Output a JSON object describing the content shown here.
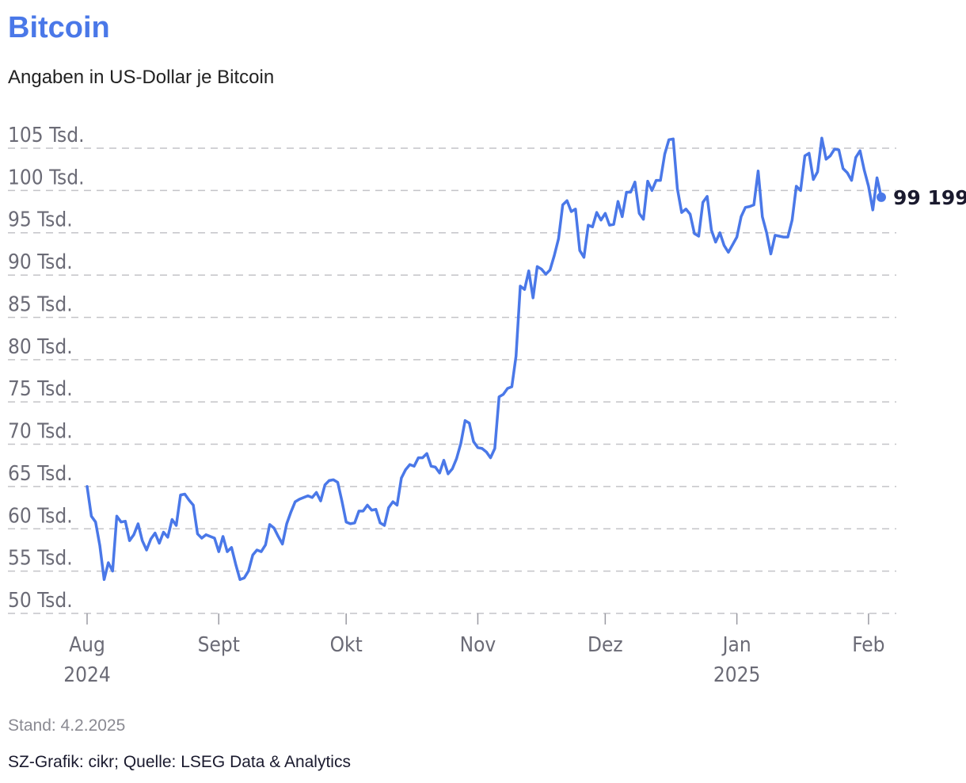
{
  "chart_data": {
    "type": "line",
    "title": "Bitcoin",
    "subtitle": "Angaben in US-Dollar je Bitcoin",
    "unit": "US-Dollar",
    "ylim": [
      49000,
      107000
    ],
    "y_ticks": [
      {
        "value": 50000,
        "label": "50 Tsd."
      },
      {
        "value": 55000,
        "label": "55 Tsd."
      },
      {
        "value": 60000,
        "label": "60 Tsd."
      },
      {
        "value": 65000,
        "label": "65 Tsd."
      },
      {
        "value": 70000,
        "label": "70 Tsd."
      },
      {
        "value": 75000,
        "label": "75 Tsd."
      },
      {
        "value": 80000,
        "label": "80 Tsd."
      },
      {
        "value": 85000,
        "label": "85 Tsd."
      },
      {
        "value": 90000,
        "label": "90 Tsd."
      },
      {
        "value": 95000,
        "label": "95 Tsd."
      },
      {
        "value": 100000,
        "label": "100 Tsd."
      },
      {
        "value": 105000,
        "label": "105 Tsd."
      }
    ],
    "x_ticks": [
      {
        "day": 0,
        "label": "Aug",
        "sublabel": "2024"
      },
      {
        "day": 31,
        "label": "Sept",
        "sublabel": ""
      },
      {
        "day": 61,
        "label": "Okt",
        "sublabel": ""
      },
      {
        "day": 92,
        "label": "Nov",
        "sublabel": ""
      },
      {
        "day": 122,
        "label": "Dez",
        "sublabel": ""
      },
      {
        "day": 153,
        "label": "Jan",
        "sublabel": "2025"
      },
      {
        "day": 184,
        "label": "Feb",
        "sublabel": ""
      }
    ],
    "x_unit": "days since 2024-08-01",
    "series": [
      {
        "name": "Bitcoin",
        "color": "#4a78e8",
        "points": [
          [
            0,
            65000
          ],
          [
            1,
            61500
          ],
          [
            2,
            60800
          ],
          [
            3,
            58000
          ],
          [
            4,
            54000
          ],
          [
            5,
            56000
          ],
          [
            6,
            55000
          ],
          [
            7,
            61500
          ],
          [
            8,
            60800
          ],
          [
            9,
            60900
          ],
          [
            10,
            58600
          ],
          [
            11,
            59300
          ],
          [
            12,
            60600
          ],
          [
            13,
            58600
          ],
          [
            14,
            57500
          ],
          [
            15,
            58800
          ],
          [
            16,
            59500
          ],
          [
            17,
            58300
          ],
          [
            18,
            59600
          ],
          [
            19,
            59000
          ],
          [
            20,
            61100
          ],
          [
            21,
            60400
          ],
          [
            22,
            64000
          ],
          [
            23,
            64100
          ],
          [
            24,
            63400
          ],
          [
            25,
            62800
          ],
          [
            26,
            59400
          ],
          [
            27,
            58900
          ],
          [
            28,
            59300
          ],
          [
            29,
            59100
          ],
          [
            30,
            58900
          ],
          [
            31,
            57300
          ],
          [
            32,
            59100
          ],
          [
            33,
            57300
          ],
          [
            34,
            57800
          ],
          [
            35,
            55800
          ],
          [
            36,
            54000
          ],
          [
            37,
            54200
          ],
          [
            38,
            55000
          ],
          [
            39,
            56900
          ],
          [
            40,
            57500
          ],
          [
            41,
            57300
          ],
          [
            42,
            58100
          ],
          [
            43,
            60500
          ],
          [
            44,
            60100
          ],
          [
            45,
            59100
          ],
          [
            46,
            58200
          ],
          [
            47,
            60600
          ],
          [
            48,
            62000
          ],
          [
            49,
            63200
          ],
          [
            50,
            63500
          ],
          [
            51,
            63700
          ],
          [
            52,
            63900
          ],
          [
            53,
            63700
          ],
          [
            54,
            64300
          ],
          [
            55,
            63300
          ],
          [
            56,
            65200
          ],
          [
            57,
            65700
          ],
          [
            58,
            65800
          ],
          [
            59,
            65500
          ],
          [
            60,
            63300
          ],
          [
            61,
            60800
          ],
          [
            62,
            60600
          ],
          [
            63,
            60700
          ],
          [
            64,
            62100
          ],
          [
            65,
            62100
          ],
          [
            66,
            62800
          ],
          [
            67,
            62200
          ],
          [
            68,
            62300
          ],
          [
            69,
            60700
          ],
          [
            70,
            60400
          ],
          [
            71,
            62500
          ],
          [
            72,
            63200
          ],
          [
            73,
            62800
          ],
          [
            74,
            66000
          ],
          [
            75,
            67000
          ],
          [
            76,
            67600
          ],
          [
            77,
            67400
          ],
          [
            78,
            68400
          ],
          [
            79,
            68400
          ],
          [
            80,
            68900
          ],
          [
            81,
            67400
          ],
          [
            82,
            67300
          ],
          [
            83,
            66600
          ],
          [
            84,
            68100
          ],
          [
            85,
            66500
          ],
          [
            86,
            67100
          ],
          [
            87,
            68300
          ],
          [
            88,
            70100
          ],
          [
            89,
            72800
          ],
          [
            90,
            72500
          ],
          [
            91,
            70300
          ],
          [
            92,
            69600
          ],
          [
            93,
            69500
          ],
          [
            94,
            69100
          ],
          [
            95,
            68400
          ],
          [
            96,
            69500
          ],
          [
            97,
            75600
          ],
          [
            98,
            75900
          ],
          [
            99,
            76600
          ],
          [
            100,
            76800
          ],
          [
            101,
            80400
          ],
          [
            102,
            88700
          ],
          [
            103,
            88300
          ],
          [
            104,
            90500
          ],
          [
            105,
            87300
          ],
          [
            106,
            91000
          ],
          [
            107,
            90700
          ],
          [
            108,
            90100
          ],
          [
            109,
            90600
          ],
          [
            110,
            92300
          ],
          [
            111,
            94300
          ],
          [
            112,
            98300
          ],
          [
            113,
            98800
          ],
          [
            114,
            97500
          ],
          [
            115,
            97800
          ],
          [
            116,
            92900
          ],
          [
            117,
            92100
          ],
          [
            118,
            95900
          ],
          [
            119,
            95700
          ],
          [
            120,
            97400
          ],
          [
            121,
            96500
          ],
          [
            122,
            97300
          ],
          [
            123,
            95900
          ],
          [
            124,
            96000
          ],
          [
            125,
            98700
          ],
          [
            126,
            96900
          ],
          [
            127,
            99800
          ],
          [
            128,
            99800
          ],
          [
            129,
            101000
          ],
          [
            130,
            97300
          ],
          [
            131,
            96600
          ],
          [
            132,
            101100
          ],
          [
            133,
            100000
          ],
          [
            134,
            101200
          ],
          [
            135,
            101200
          ],
          [
            136,
            104300
          ],
          [
            137,
            106000
          ],
          [
            138,
            106100
          ],
          [
            139,
            100200
          ],
          [
            140,
            97400
          ],
          [
            141,
            97800
          ],
          [
            142,
            97200
          ],
          [
            143,
            94900
          ],
          [
            144,
            94600
          ],
          [
            145,
            98600
          ],
          [
            146,
            99300
          ],
          [
            147,
            95300
          ],
          [
            148,
            93900
          ],
          [
            149,
            95000
          ],
          [
            150,
            93500
          ],
          [
            151,
            92700
          ],
          [
            152,
            93600
          ],
          [
            153,
            94500
          ],
          [
            154,
            96900
          ],
          [
            155,
            98000
          ],
          [
            156,
            98100
          ],
          [
            157,
            98300
          ],
          [
            158,
            102300
          ],
          [
            159,
            96900
          ],
          [
            160,
            95000
          ],
          [
            161,
            92500
          ],
          [
            162,
            94700
          ],
          [
            163,
            94600
          ],
          [
            164,
            94500
          ],
          [
            165,
            94500
          ],
          [
            166,
            96500
          ],
          [
            167,
            100500
          ],
          [
            168,
            100000
          ],
          [
            169,
            104100
          ],
          [
            170,
            104400
          ],
          [
            171,
            101300
          ],
          [
            172,
            102200
          ],
          [
            173,
            106200
          ],
          [
            174,
            103700
          ],
          [
            175,
            104100
          ],
          [
            176,
            104900
          ],
          [
            177,
            104800
          ],
          [
            178,
            102600
          ],
          [
            179,
            102100
          ],
          [
            180,
            101200
          ],
          [
            181,
            103900
          ],
          [
            182,
            104700
          ],
          [
            183,
            102400
          ],
          [
            184,
            100500
          ],
          [
            185,
            97700
          ],
          [
            186,
            101500
          ],
          [
            187,
            99199
          ]
        ]
      }
    ],
    "last_value": 99199,
    "last_value_label": "99 199",
    "grid": "horizontal dashed",
    "legend": "none"
  },
  "footer": {
    "date": "Stand: 4.2.2025",
    "source": "SZ-Grafik: cikr; Quelle: LSEG Data & Analytics"
  }
}
